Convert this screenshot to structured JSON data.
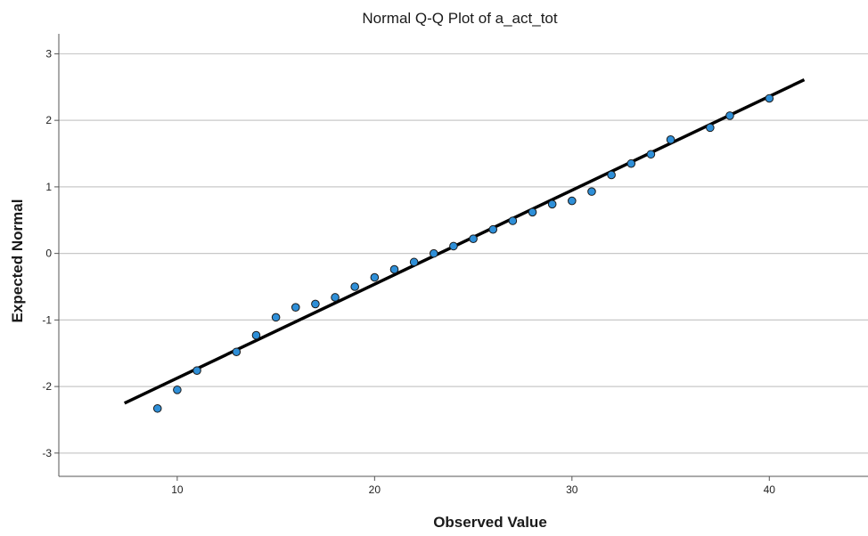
{
  "chart_data": {
    "type": "scatter",
    "title": "Normal Q-Q Plot of a_act_tot",
    "xlabel": "Observed Value",
    "ylabel": "Expected Normal",
    "xlim": [
      4,
      45
    ],
    "ylim": [
      -3.35,
      3.3
    ],
    "x_ticks": [
      10,
      20,
      30,
      40
    ],
    "y_ticks": [
      -3,
      -2,
      -1,
      0,
      1,
      2,
      3
    ],
    "grid": "horizontal",
    "series": [
      {
        "marker_color": "#2E8FD8",
        "marker_edge": "#1a1a1a",
        "points": [
          {
            "x": 9,
            "y": -2.33
          },
          {
            "x": 10,
            "y": -2.05
          },
          {
            "x": 11,
            "y": -1.76
          },
          {
            "x": 13,
            "y": -1.48
          },
          {
            "x": 14,
            "y": -1.23
          },
          {
            "x": 15,
            "y": -0.96
          },
          {
            "x": 16,
            "y": -0.81
          },
          {
            "x": 17,
            "y": -0.76
          },
          {
            "x": 18,
            "y": -0.66
          },
          {
            "x": 19,
            "y": -0.5
          },
          {
            "x": 20,
            "y": -0.36
          },
          {
            "x": 21,
            "y": -0.24
          },
          {
            "x": 22,
            "y": -0.13
          },
          {
            "x": 23,
            "y": 0.0
          },
          {
            "x": 24,
            "y": 0.11
          },
          {
            "x": 25,
            "y": 0.22
          },
          {
            "x": 26,
            "y": 0.36
          },
          {
            "x": 27,
            "y": 0.49
          },
          {
            "x": 28,
            "y": 0.62
          },
          {
            "x": 29,
            "y": 0.74
          },
          {
            "x": 30,
            "y": 0.79
          },
          {
            "x": 31,
            "y": 0.93
          },
          {
            "x": 32,
            "y": 1.18
          },
          {
            "x": 33,
            "y": 1.35
          },
          {
            "x": 34,
            "y": 1.49
          },
          {
            "x": 35,
            "y": 1.71
          },
          {
            "x": 37,
            "y": 1.89
          },
          {
            "x": 38,
            "y": 2.07
          },
          {
            "x": 40,
            "y": 2.33
          }
        ]
      }
    ],
    "reference_line": {
      "color": "#000000",
      "points": [
        {
          "x": 7.4,
          "y": -2.24
        },
        {
          "x": 41.7,
          "y": 2.6
        }
      ]
    }
  }
}
